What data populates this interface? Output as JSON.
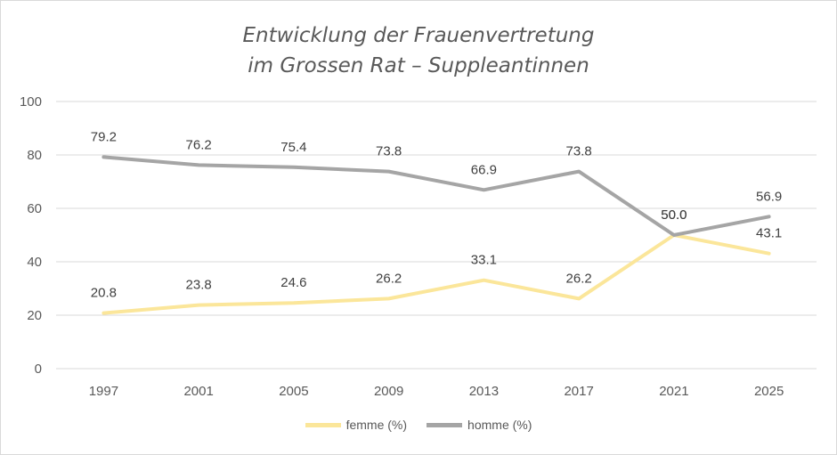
{
  "chart_data": {
    "type": "line",
    "title_lines": [
      "Entwicklung der Frauenvertretung",
      "im Grossen Rat – Suppleantinnen"
    ],
    "categories": [
      "1997",
      "2001",
      "2005",
      "2009",
      "2013",
      "2017",
      "2021",
      "2025"
    ],
    "series": [
      {
        "name": "femme (%)",
        "color": "#fbe69a",
        "values": [
          20.8,
          23.8,
          24.6,
          26.2,
          33.1,
          26.2,
          50.0,
          43.1
        ]
      },
      {
        "name": "homme (%)",
        "color": "#a5a5a5",
        "values": [
          79.2,
          76.2,
          75.4,
          73.8,
          66.9,
          73.8,
          50.0,
          56.9
        ]
      }
    ],
    "ylim": [
      0,
      100
    ],
    "yticks": [
      0,
      20,
      40,
      60,
      80,
      100
    ],
    "grid": true,
    "legend_position": "bottom",
    "data_labels": true
  }
}
